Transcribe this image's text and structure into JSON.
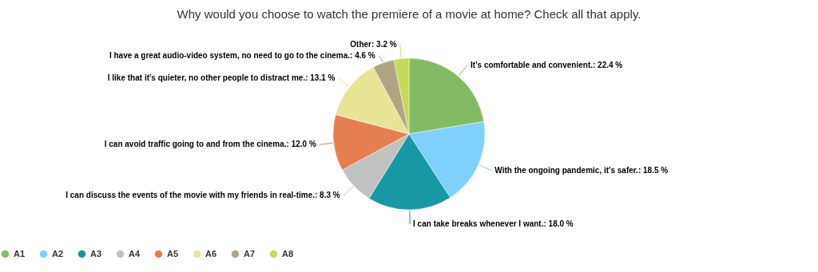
{
  "chart_data": {
    "type": "pie",
    "title": "Why would you choose to watch the premiere of a movie at home? Check all that apply.",
    "categories": [
      "A1",
      "A2",
      "A3",
      "A4",
      "A5",
      "A6",
      "A7",
      "A8"
    ],
    "values": [
      22.4,
      18.5,
      18.0,
      8.3,
      12.0,
      13.1,
      4.6,
      3.2
    ],
    "colors": [
      "#82bb63",
      "#7fd0fc",
      "#1897a4",
      "#bfc2bf",
      "#e57f52",
      "#e8e496",
      "#b0a582",
      "#c5d95a"
    ],
    "value_labels": [
      "It's comfortable and convenient.: 22.4 %",
      "With the ongoing pandemic, it's safer.: 18.5 %",
      "I can take breaks whenever I want.: 18.0 %",
      "I can discuss the events of the movie with my friends in real-time.: 8.3 %",
      "I can avoid traffic going to and from the cinema.: 12.0 %",
      "I like that it's quieter, no other people to distract me.: 13.1 %",
      "I have a great audio-video system, no need to go to the cinema.: 4.6 %",
      "Other: 3.2 %"
    ],
    "legend": "bottom"
  }
}
